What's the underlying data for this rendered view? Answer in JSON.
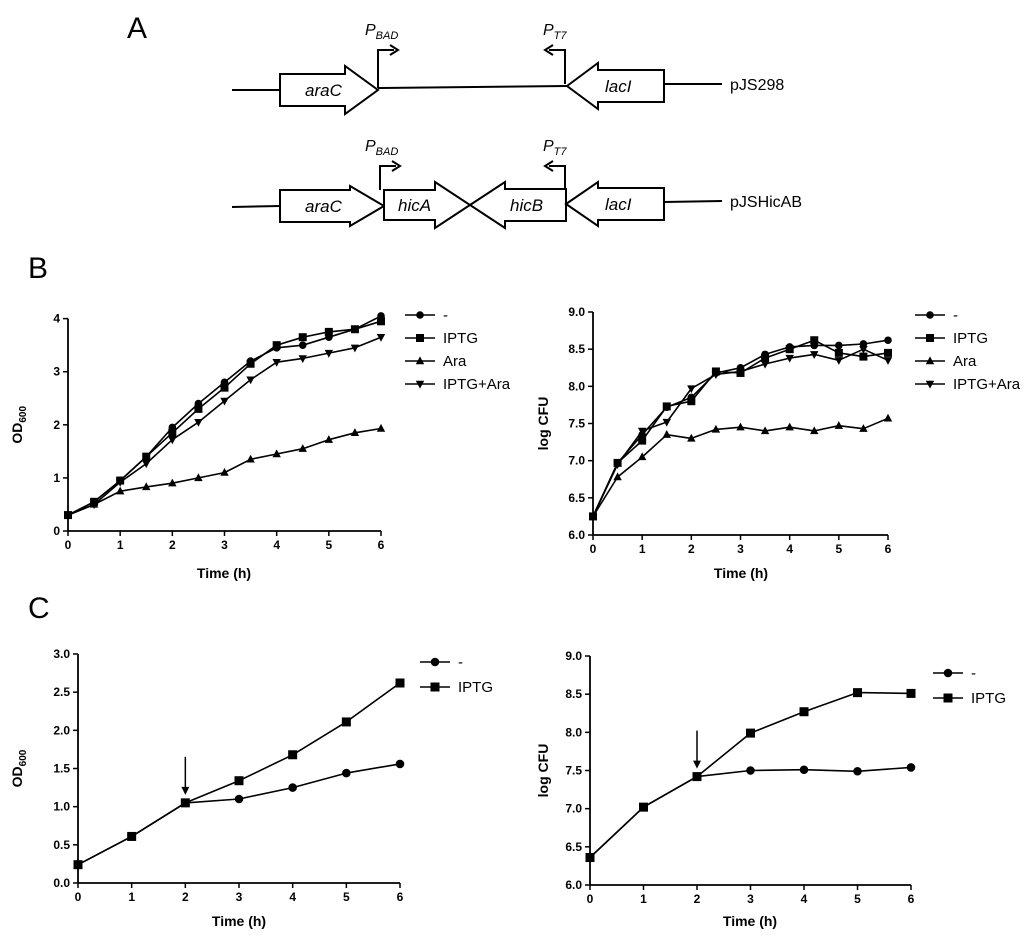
{
  "panel_labels": {
    "a": "A",
    "b": "B",
    "c": "C"
  },
  "diagram": {
    "constructs": [
      {
        "name": "pJS298",
        "genes": [
          "araC",
          "lacI"
        ],
        "promoters": [
          {
            "letter": "P",
            "sub": "BAD"
          },
          {
            "letter": "P",
            "sub": "T7"
          }
        ]
      },
      {
        "name": "pJSHicAB",
        "genes": [
          "araC",
          "hicA",
          "hicB",
          "lacI"
        ],
        "promoters": [
          {
            "letter": "P",
            "sub": "BAD"
          },
          {
            "letter": "P",
            "sub": "T7"
          }
        ]
      }
    ]
  },
  "chart_data": [
    {
      "id": "B-left",
      "type": "line",
      "xlabel": "Time (h)",
      "ylabel": "OD",
      "ylabel_sub": "600",
      "xlim": [
        0,
        6
      ],
      "ylim": [
        0,
        4.2
      ],
      "xticks": [
        0,
        1,
        2,
        3,
        4,
        5,
        6
      ],
      "yticks": [
        0,
        1,
        2,
        3,
        4
      ],
      "ytick_labels": [
        "0",
        "1",
        "2",
        "3",
        "4"
      ],
      "legend_position": "top-right",
      "x": [
        0,
        0.5,
        1,
        1.5,
        2,
        2.5,
        3,
        3.5,
        4,
        4.5,
        5,
        5.5,
        6
      ],
      "series": [
        {
          "name": "-",
          "marker": "circle",
          "values": [
            0.3,
            0.55,
            0.95,
            1.4,
            1.95,
            2.4,
            2.8,
            3.2,
            3.45,
            3.5,
            3.65,
            3.8,
            4.05
          ]
        },
        {
          "name": "IPTG",
          "marker": "square",
          "values": [
            0.3,
            0.55,
            0.95,
            1.4,
            1.85,
            2.3,
            2.7,
            3.15,
            3.5,
            3.65,
            3.75,
            3.8,
            3.95
          ]
        },
        {
          "name": "Ara",
          "marker": "triangle-up",
          "values": [
            0.3,
            0.5,
            0.75,
            0.83,
            0.9,
            1.0,
            1.1,
            1.35,
            1.45,
            1.55,
            1.72,
            1.85,
            1.93
          ]
        },
        {
          "name": "IPTG+Ara",
          "marker": "triangle-down",
          "values": [
            0.3,
            0.5,
            0.92,
            1.27,
            1.72,
            2.05,
            2.45,
            2.85,
            3.18,
            3.25,
            3.35,
            3.45,
            3.65
          ]
        }
      ]
    },
    {
      "id": "B-right",
      "type": "line",
      "xlabel": "Time (h)",
      "ylabel": "log CFU",
      "ylabel_sub": "",
      "xlim": [
        0,
        6
      ],
      "ylim": [
        6.0,
        9.0
      ],
      "xticks": [
        0,
        1,
        2,
        3,
        4,
        5,
        6
      ],
      "yticks": [
        6.0,
        6.5,
        7.0,
        7.5,
        8.0,
        8.5,
        9.0
      ],
      "ytick_labels": [
        "6.0",
        "6.5",
        "7.0",
        "7.5",
        "8.0",
        "8.5",
        "9.0"
      ],
      "legend_position": "top-right",
      "x": [
        0,
        0.5,
        1,
        1.5,
        2,
        2.5,
        3,
        3.5,
        4,
        4.5,
        5,
        5.5,
        6
      ],
      "series": [
        {
          "name": "-",
          "marker": "circle",
          "values": [
            6.25,
            6.97,
            7.35,
            7.72,
            7.85,
            8.18,
            8.25,
            8.43,
            8.53,
            8.55,
            8.55,
            8.57,
            8.62
          ]
        },
        {
          "name": "IPTG",
          "marker": "square",
          "values": [
            6.25,
            6.97,
            7.27,
            7.73,
            7.8,
            8.2,
            8.18,
            8.38,
            8.5,
            8.62,
            8.45,
            8.4,
            8.45
          ]
        },
        {
          "name": "Ara",
          "marker": "triangle-up",
          "values": [
            6.25,
            6.78,
            7.05,
            7.35,
            7.3,
            7.42,
            7.45,
            7.4,
            7.45,
            7.4,
            7.47,
            7.43,
            7.57
          ]
        },
        {
          "name": "IPTG+Ara",
          "marker": "triangle-down",
          "values": [
            6.25,
            6.95,
            7.4,
            7.52,
            7.97,
            8.16,
            8.2,
            8.3,
            8.38,
            8.43,
            8.35,
            8.5,
            8.35
          ]
        }
      ]
    },
    {
      "id": "C-left",
      "type": "line",
      "xlabel": "Time (h)",
      "ylabel": "OD",
      "ylabel_sub": "600",
      "xlim": [
        0,
        6
      ],
      "ylim": [
        0,
        3.0
      ],
      "xticks": [
        0,
        1,
        2,
        3,
        4,
        5,
        6
      ],
      "yticks": [
        0,
        0.5,
        1.0,
        1.5,
        2.0,
        2.5,
        3.0
      ],
      "ytick_labels": [
        "0.0",
        "0.5",
        "1.0",
        "1.5",
        "2.0",
        "2.5",
        "3.0"
      ],
      "legend_position": "top-right",
      "arrow_at_x": 2,
      "x": [
        0,
        1,
        2,
        3,
        4,
        5,
        6
      ],
      "series": [
        {
          "name": "-",
          "marker": "circle",
          "values": [
            0.24,
            0.61,
            1.05,
            1.1,
            1.25,
            1.44,
            1.56
          ]
        },
        {
          "name": "IPTG",
          "marker": "square",
          "values": [
            0.24,
            0.61,
            1.05,
            1.34,
            1.68,
            2.11,
            2.62
          ]
        }
      ]
    },
    {
      "id": "C-right",
      "type": "line",
      "xlabel": "Time (h)",
      "ylabel": "log CFU",
      "ylabel_sub": "",
      "xlim": [
        0,
        6
      ],
      "ylim": [
        6.0,
        9.0
      ],
      "xticks": [
        0,
        1,
        2,
        3,
        4,
        5,
        6
      ],
      "yticks": [
        6.0,
        6.5,
        7.0,
        7.5,
        8.0,
        8.5,
        9.0
      ],
      "ytick_labels": [
        "6.0",
        "6.5",
        "7.0",
        "7.5",
        "8.0",
        "8.5",
        "9.0"
      ],
      "legend_position": "top-right",
      "arrow_at_x": 2,
      "x": [
        0,
        1,
        2,
        3,
        4,
        5,
        6
      ],
      "series": [
        {
          "name": "-",
          "marker": "circle",
          "values": [
            6.36,
            7.02,
            7.42,
            7.5,
            7.51,
            7.49,
            7.54
          ]
        },
        {
          "name": "IPTG",
          "marker": "square",
          "values": [
            6.36,
            7.02,
            7.42,
            7.99,
            8.27,
            8.52,
            8.51
          ]
        }
      ]
    }
  ]
}
